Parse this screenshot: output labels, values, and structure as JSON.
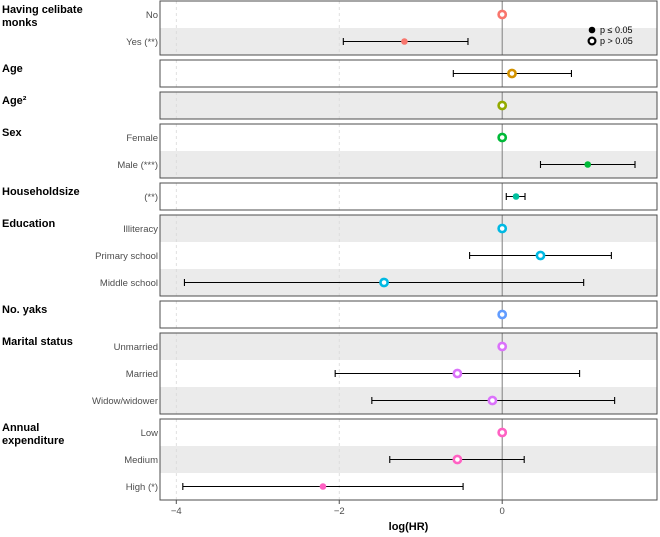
{
  "chart_data": {
    "type": "forest",
    "xlabel": "log(HR)",
    "xlim": [
      -4.2,
      1.9
    ],
    "xticks": [
      -4,
      -2,
      0
    ],
    "xtick_labels": [
      "−4",
      "−2",
      "0"
    ],
    "legend": {
      "position": "top-right",
      "items": [
        {
          "label": "p ≤ 0.05",
          "filled": true
        },
        {
          "label": "p > 0.05",
          "filled": false
        }
      ]
    },
    "groups": [
      {
        "name": "Having celibate monks",
        "title_lines": [
          "Having celibate",
          "monks"
        ],
        "rows": [
          {
            "label": "No",
            "est": 0,
            "lo": null,
            "hi": null,
            "sig": false,
            "color": "#F8766D",
            "shade": false
          },
          {
            "label": "Yes (**)",
            "est": -1.2,
            "lo": -1.95,
            "hi": -0.42,
            "sig": true,
            "color": "#F8766D",
            "shade": true
          }
        ]
      },
      {
        "name": "Age",
        "title_lines": [
          "Age"
        ],
        "rows": [
          {
            "label": "",
            "est": 0.12,
            "lo": -0.6,
            "hi": 0.85,
            "sig": false,
            "color": "#D39200",
            "shade": false
          }
        ]
      },
      {
        "name": "Age²",
        "title_lines": [
          "Age²"
        ],
        "rows": [
          {
            "label": "",
            "est": 0,
            "lo": null,
            "hi": null,
            "sig": false,
            "color": "#93AA00",
            "shade": true
          }
        ]
      },
      {
        "name": "Sex",
        "title_lines": [
          "Sex"
        ],
        "rows": [
          {
            "label": "Female",
            "est": 0,
            "lo": null,
            "hi": null,
            "sig": false,
            "color": "#00BA38",
            "shade": false
          },
          {
            "label": "Male (***)",
            "est": 1.05,
            "lo": 0.47,
            "hi": 1.63,
            "sig": true,
            "color": "#00BA38",
            "shade": true
          }
        ]
      },
      {
        "name": "Householdsize",
        "title_lines": [
          "Householdsize"
        ],
        "rows": [
          {
            "label": "(**)",
            "est": 0.17,
            "lo": 0.05,
            "hi": 0.28,
            "sig": true,
            "color": "#00C19F",
            "shade": false
          }
        ]
      },
      {
        "name": "Education",
        "title_lines": [
          "Education"
        ],
        "rows": [
          {
            "label": "Illiteracy",
            "est": 0,
            "lo": null,
            "hi": null,
            "sig": false,
            "color": "#00B9E3",
            "shade": true
          },
          {
            "label": "Primary school",
            "est": 0.47,
            "lo": -0.4,
            "hi": 1.34,
            "sig": false,
            "color": "#00B9E3",
            "shade": false
          },
          {
            "label": "Middle school",
            "est": -1.45,
            "lo": -3.9,
            "hi": 1.0,
            "sig": false,
            "color": "#00B9E3",
            "shade": true
          }
        ]
      },
      {
        "name": "No. yaks",
        "title_lines": [
          "No. yaks"
        ],
        "rows": [
          {
            "label": "",
            "est": 0,
            "lo": null,
            "hi": null,
            "sig": false,
            "color": "#619CFF",
            "shade": false
          }
        ]
      },
      {
        "name": "Marital status",
        "title_lines": [
          "Marital status"
        ],
        "rows": [
          {
            "label": "Unmarried",
            "est": 0,
            "lo": null,
            "hi": null,
            "sig": false,
            "color": "#DB72FB",
            "shade": true
          },
          {
            "label": "Married",
            "est": -0.55,
            "lo": -2.05,
            "hi": 0.95,
            "sig": false,
            "color": "#DB72FB",
            "shade": false
          },
          {
            "label": "Widow/widower",
            "est": -0.12,
            "lo": -1.6,
            "hi": 1.38,
            "sig": false,
            "color": "#DB72FB",
            "shade": true
          }
        ]
      },
      {
        "name": "Annual expenditure",
        "title_lines": [
          "Annual",
          "expenditure"
        ],
        "rows": [
          {
            "label": "Low",
            "est": 0,
            "lo": null,
            "hi": null,
            "sig": false,
            "color": "#FF61C3",
            "shade": false
          },
          {
            "label": "Medium",
            "est": -0.55,
            "lo": -1.38,
            "hi": 0.27,
            "sig": false,
            "color": "#FF61C3",
            "shade": true
          },
          {
            "label": "High (*)",
            "est": -2.2,
            "lo": -3.92,
            "hi": -0.48,
            "sig": true,
            "color": "#FF61C3",
            "shade": false
          }
        ]
      }
    ]
  }
}
